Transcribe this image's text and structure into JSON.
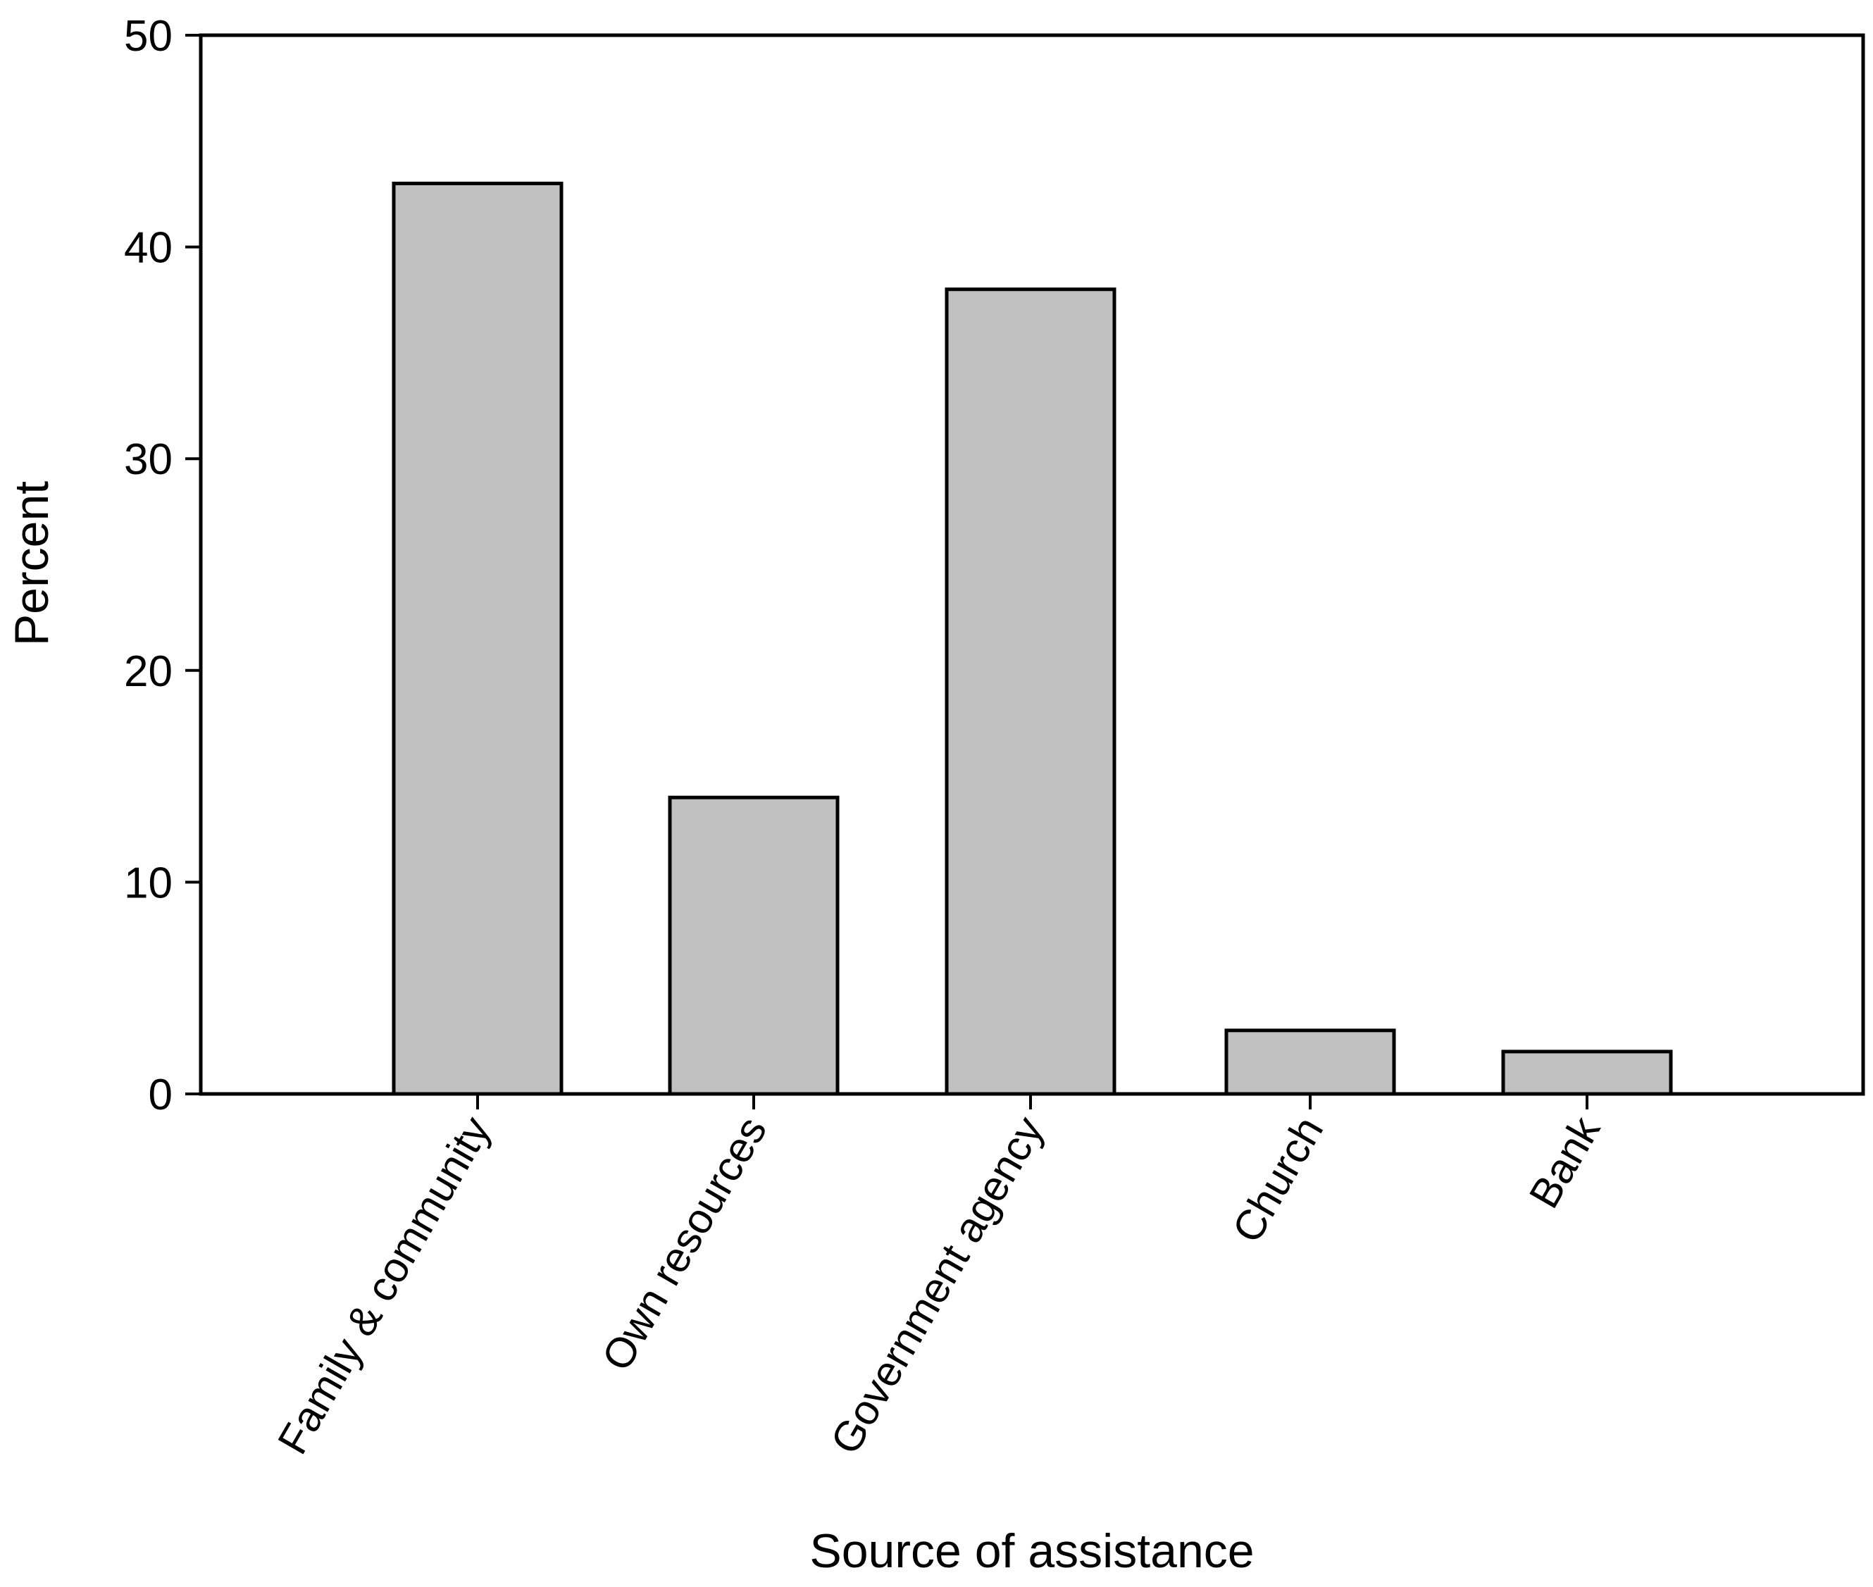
{
  "chart_data": {
    "type": "bar",
    "categories": [
      "Family & community",
      "Own resources",
      "Government agency",
      "Church",
      "Bank"
    ],
    "values": [
      43,
      14,
      38,
      3,
      2
    ],
    "title": "",
    "xlabel": "Source of assistance",
    "ylabel": "Percent",
    "ylim": [
      0,
      50
    ],
    "yticks": [
      0,
      10,
      20,
      30,
      40,
      50
    ],
    "grid": false,
    "legend": "none",
    "bar_color": "#c0c0c0",
    "edge_color": "#000000"
  }
}
